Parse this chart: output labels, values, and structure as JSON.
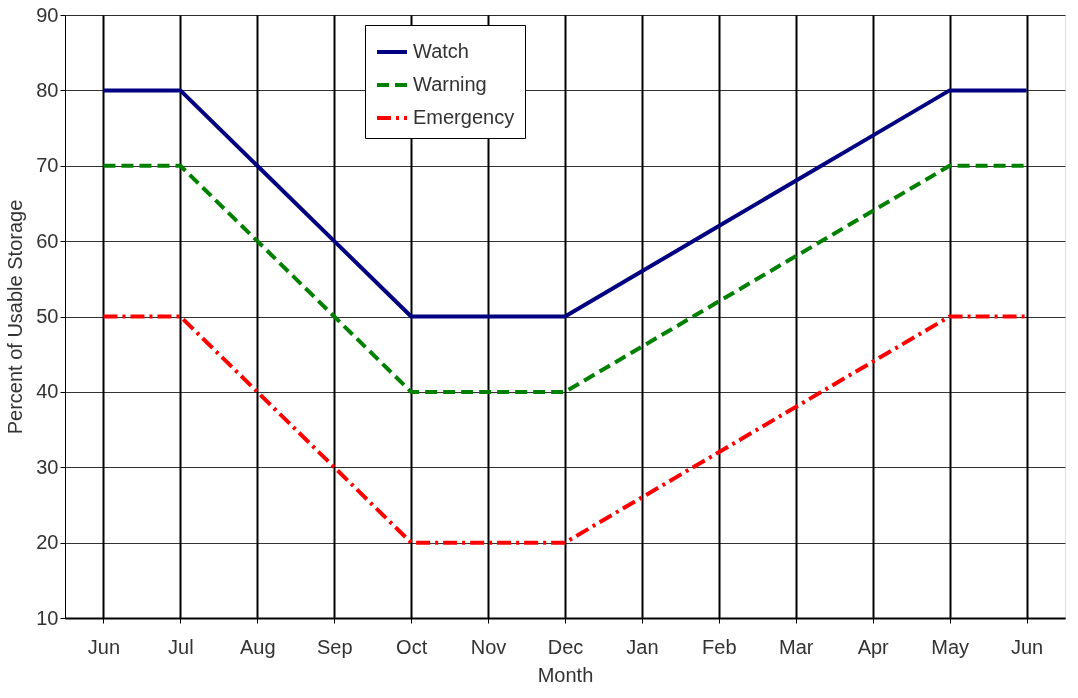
{
  "chart_data": {
    "type": "line",
    "xlabel": "Month",
    "ylabel": "Percent of Usable Storage",
    "categories": [
      "Jun",
      "Jul",
      "Aug",
      "Sep",
      "Oct",
      "Nov",
      "Dec",
      "Jan",
      "Feb",
      "Mar",
      "Apr",
      "May",
      "Jun"
    ],
    "series": [
      {
        "name": "Watch",
        "color": "#000080",
        "line_style": "solid",
        "values": [
          80,
          80,
          70,
          60,
          50,
          50,
          50,
          56,
          62,
          68,
          74,
          80,
          80
        ]
      },
      {
        "name": "Warning",
        "color": "#008000",
        "line_style": "dashed",
        "values": [
          70,
          70,
          60,
          50,
          40,
          40,
          40,
          46,
          52,
          58,
          64,
          70,
          70
        ]
      },
      {
        "name": "Emergency",
        "color": "#ff0000",
        "line_style": "dashdot",
        "values": [
          50,
          50,
          40,
          30,
          20,
          20,
          20,
          26,
          32,
          38,
          44,
          50,
          50
        ]
      }
    ],
    "ylim": [
      10,
      90
    ],
    "yticks": [
      10,
      20,
      30,
      40,
      50,
      60,
      70,
      80,
      90
    ],
    "grid": true,
    "legend": "top",
    "marker": "none"
  }
}
